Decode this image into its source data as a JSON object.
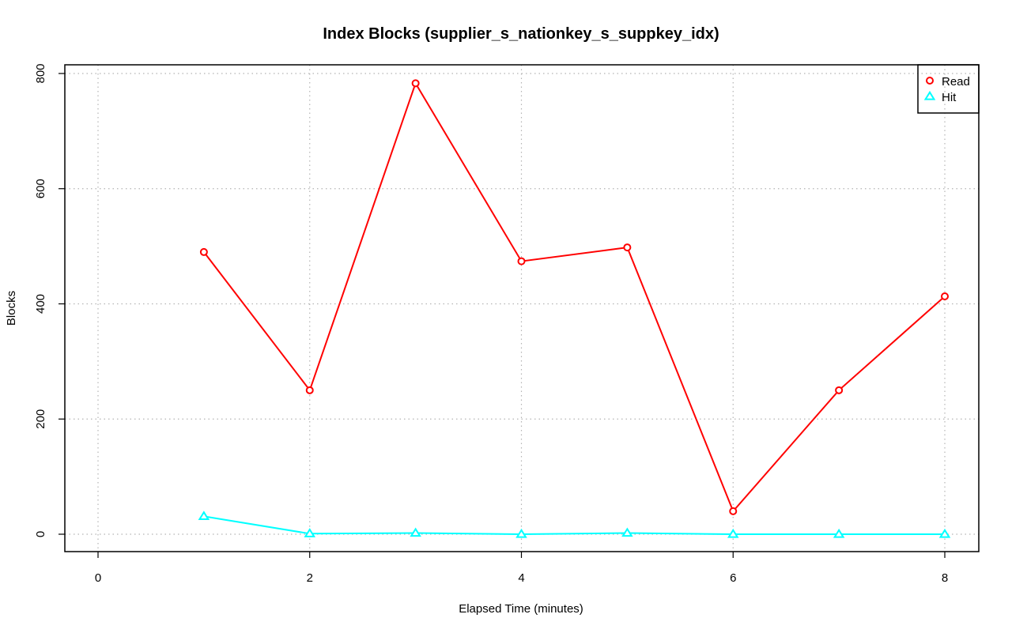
{
  "chart_data": {
    "type": "line",
    "title": "Index Blocks (supplier_s_nationkey_s_suppkey_idx)",
    "xlabel": "Elapsed Time (minutes)",
    "ylabel": "Blocks",
    "xlim": [
      0,
      8
    ],
    "ylim": [
      0,
      800
    ],
    "x_ticks": [
      0,
      2,
      4,
      6,
      8
    ],
    "y_ticks": [
      0,
      200,
      400,
      600,
      800
    ],
    "grid": true,
    "legend_position": "top-right",
    "series": [
      {
        "name": "Read",
        "color": "#ff0000",
        "marker": "circle",
        "x": [
          1,
          2,
          3,
          4,
          5,
          6,
          7,
          8
        ],
        "y": [
          490,
          250,
          783,
          474,
          498,
          40,
          250,
          413
        ]
      },
      {
        "name": "Hit",
        "color": "#00ffff",
        "marker": "triangle",
        "x": [
          1,
          2,
          3,
          4,
          5,
          6,
          7,
          8
        ],
        "y": [
          31,
          1,
          2,
          0,
          2,
          0,
          0,
          0
        ]
      }
    ]
  }
}
